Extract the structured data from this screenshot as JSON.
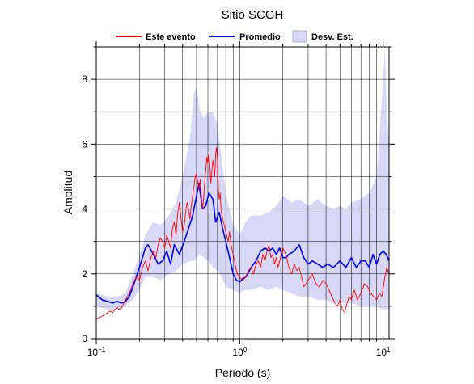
{
  "chart_data": {
    "type": "line",
    "title": "Sitio SCGH",
    "xlabel": "Periodo (s)",
    "ylabel": "Amplitud",
    "x_scale": "log",
    "xlim": [
      0.1,
      11
    ],
    "ylim": [
      0,
      9
    ],
    "grid": true,
    "legend_position": "top",
    "x_ticks": [
      {
        "value": 0.1,
        "base": "10",
        "exp": "−1"
      },
      {
        "value": 1,
        "base": "10",
        "exp": "0"
      },
      {
        "value": 10,
        "base": "10",
        "exp": "1"
      }
    ],
    "y_ticks": [
      0,
      2,
      4,
      6,
      8
    ],
    "legend": [
      {
        "label": "Este evento",
        "kind": "line",
        "color": "#ff0000"
      },
      {
        "label": "Promedio",
        "kind": "line",
        "color": "#0000ee"
      },
      {
        "label": "Desv. Est.",
        "kind": "band",
        "color": "#d8d8f6"
      }
    ],
    "band": {
      "name": "Desv. Est.",
      "color": "#d8d8f6",
      "x": [
        0.1,
        0.12,
        0.14,
        0.16,
        0.18,
        0.2,
        0.22,
        0.25,
        0.28,
        0.32,
        0.36,
        0.4,
        0.45,
        0.48,
        0.5,
        0.53,
        0.56,
        0.6,
        0.65,
        0.7,
        0.75,
        0.8,
        0.9,
        1.0,
        1.1,
        1.2,
        1.4,
        1.6,
        1.8,
        2.0,
        2.3,
        2.6,
        3.0,
        3.5,
        4.0,
        4.5,
        5.0,
        5.5,
        6.0,
        7.0,
        8.0,
        9.0,
        10.0,
        10.3,
        10.6,
        11.0
      ],
      "upper": [
        1.4,
        1.3,
        1.3,
        1.4,
        2.0,
        2.6,
        3.2,
        3.6,
        3.5,
        3.8,
        4.2,
        5.0,
        6.2,
        7.6,
        7.8,
        7.0,
        6.8,
        7.0,
        7.0,
        6.6,
        5.5,
        4.5,
        3.5,
        3.2,
        3.6,
        3.8,
        3.8,
        3.9,
        4.1,
        4.4,
        4.2,
        4.3,
        4.1,
        4.3,
        4.1,
        4.0,
        4.1,
        4.0,
        4.2,
        4.3,
        4.5,
        5.0,
        8.0,
        9.0,
        7.0,
        6.0
      ],
      "lower": [
        1.0,
        0.9,
        0.9,
        1.0,
        1.2,
        1.5,
        1.9,
        1.9,
        1.8,
        2.0,
        2.1,
        2.3,
        2.4,
        2.4,
        2.5,
        2.6,
        2.5,
        2.4,
        2.2,
        2.1,
        1.9,
        1.6,
        1.5,
        1.4,
        1.5,
        1.5,
        1.6,
        1.5,
        1.6,
        1.5,
        1.4,
        1.3,
        1.3,
        1.2,
        1.2,
        1.1,
        1.1,
        1.1,
        1.1,
        1.0,
        1.0,
        1.0,
        0.9,
        0.9,
        0.9,
        0.9
      ]
    },
    "series": [
      {
        "name": "Promedio",
        "color": "#0000ee",
        "x": [
          0.1,
          0.11,
          0.12,
          0.13,
          0.14,
          0.15,
          0.16,
          0.17,
          0.18,
          0.19,
          0.2,
          0.21,
          0.22,
          0.23,
          0.25,
          0.27,
          0.29,
          0.31,
          0.33,
          0.35,
          0.38,
          0.41,
          0.44,
          0.47,
          0.5,
          0.52,
          0.55,
          0.58,
          0.61,
          0.65,
          0.68,
          0.72,
          0.76,
          0.8,
          0.85,
          0.9,
          0.95,
          1.0,
          1.05,
          1.1,
          1.2,
          1.3,
          1.4,
          1.5,
          1.6,
          1.7,
          1.8,
          1.9,
          2.0,
          2.1,
          2.2,
          2.4,
          2.6,
          2.8,
          3.0,
          3.2,
          3.5,
          3.8,
          4.1,
          4.5,
          5.0,
          5.5,
          6.0,
          6.5,
          7.0,
          7.5,
          8.0,
          8.5,
          9.0,
          9.5,
          10.0,
          10.5,
          11.0
        ],
        "y": [
          1.35,
          1.2,
          1.15,
          1.1,
          1.15,
          1.1,
          1.15,
          1.3,
          1.6,
          1.9,
          2.2,
          2.5,
          2.8,
          2.9,
          2.6,
          2.3,
          2.4,
          2.7,
          2.3,
          2.9,
          2.6,
          3.0,
          3.4,
          3.8,
          4.4,
          4.8,
          4.0,
          4.1,
          4.5,
          4.3,
          3.6,
          3.9,
          3.4,
          3.0,
          2.5,
          2.0,
          1.8,
          1.75,
          1.85,
          1.9,
          2.2,
          2.4,
          2.7,
          2.8,
          2.7,
          2.8,
          2.6,
          2.8,
          2.5,
          2.5,
          2.6,
          2.7,
          2.9,
          2.5,
          2.3,
          2.4,
          2.3,
          2.2,
          2.3,
          2.2,
          2.4,
          2.2,
          2.5,
          2.2,
          2.4,
          2.4,
          2.2,
          2.6,
          2.3,
          2.6,
          2.7,
          2.6,
          2.4
        ]
      },
      {
        "name": "Este evento",
        "color": "#ff0000",
        "x": [
          0.1,
          0.105,
          0.11,
          0.115,
          0.12,
          0.125,
          0.13,
          0.135,
          0.14,
          0.145,
          0.15,
          0.16,
          0.17,
          0.18,
          0.19,
          0.2,
          0.21,
          0.22,
          0.23,
          0.24,
          0.25,
          0.26,
          0.27,
          0.28,
          0.29,
          0.3,
          0.31,
          0.32,
          0.33,
          0.34,
          0.35,
          0.36,
          0.37,
          0.38,
          0.39,
          0.4,
          0.41,
          0.42,
          0.43,
          0.44,
          0.45,
          0.46,
          0.47,
          0.48,
          0.49,
          0.5,
          0.51,
          0.52,
          0.53,
          0.54,
          0.55,
          0.56,
          0.57,
          0.58,
          0.59,
          0.6,
          0.61,
          0.62,
          0.63,
          0.64,
          0.65,
          0.66,
          0.67,
          0.68,
          0.69,
          0.7,
          0.71,
          0.72,
          0.73,
          0.74,
          0.75,
          0.77,
          0.79,
          0.81,
          0.83,
          0.85,
          0.87,
          0.9,
          0.93,
          0.96,
          1.0,
          1.05,
          1.1,
          1.15,
          1.2,
          1.25,
          1.3,
          1.35,
          1.4,
          1.45,
          1.5,
          1.55,
          1.6,
          1.65,
          1.7,
          1.75,
          1.8,
          1.85,
          1.9,
          1.95,
          2.0,
          2.1,
          2.2,
          2.3,
          2.4,
          2.5,
          2.6,
          2.7,
          2.8,
          2.9,
          3.0,
          3.2,
          3.4,
          3.6,
          3.8,
          4.0,
          4.2,
          4.4,
          4.6,
          4.8,
          5.0,
          5.2,
          5.4,
          5.6,
          5.8,
          6.0,
          6.3,
          6.6,
          7.0,
          7.4,
          7.8,
          8.2,
          8.6,
          9.0,
          9.4,
          9.8,
          10.2,
          10.6,
          11.0
        ],
        "y": [
          0.6,
          0.65,
          0.7,
          0.75,
          0.8,
          0.85,
          0.8,
          0.9,
          0.95,
          0.9,
          0.95,
          1.2,
          1.4,
          1.7,
          1.9,
          1.8,
          2.2,
          2.4,
          2.1,
          2.5,
          2.7,
          2.5,
          2.9,
          3.1,
          3.0,
          2.8,
          3.2,
          3.0,
          2.8,
          3.4,
          3.6,
          3.2,
          3.9,
          4.2,
          3.7,
          3.3,
          3.5,
          3.9,
          4.2,
          4.0,
          3.7,
          4.1,
          4.4,
          4.7,
          5.0,
          5.1,
          4.8,
          4.6,
          4.9,
          4.4,
          4.0,
          4.3,
          4.8,
          5.2,
          5.6,
          5.4,
          5.7,
          5.3,
          4.8,
          5.2,
          5.5,
          5.3,
          5.0,
          5.7,
          5.9,
          5.5,
          4.6,
          4.3,
          4.5,
          4.1,
          3.8,
          3.6,
          3.4,
          3.2,
          3.0,
          3.3,
          2.9,
          2.6,
          2.3,
          2.0,
          1.9,
          1.8,
          1.9,
          2.1,
          2.2,
          2.0,
          2.3,
          2.4,
          2.2,
          2.6,
          2.4,
          2.7,
          2.9,
          2.5,
          2.6,
          2.3,
          2.5,
          2.2,
          2.4,
          2.6,
          2.8,
          2.6,
          2.2,
          2.0,
          2.3,
          2.1,
          2.2,
          1.9,
          1.6,
          1.7,
          1.8,
          2.0,
          1.7,
          1.6,
          1.8,
          1.7,
          1.5,
          1.3,
          1.1,
          1.0,
          1.2,
          0.9,
          0.8,
          1.1,
          1.3,
          1.2,
          1.5,
          1.2,
          1.4,
          1.7,
          1.6,
          1.4,
          1.3,
          1.2,
          1.4,
          1.3,
          1.8,
          2.2,
          2.0
        ]
      }
    ]
  }
}
